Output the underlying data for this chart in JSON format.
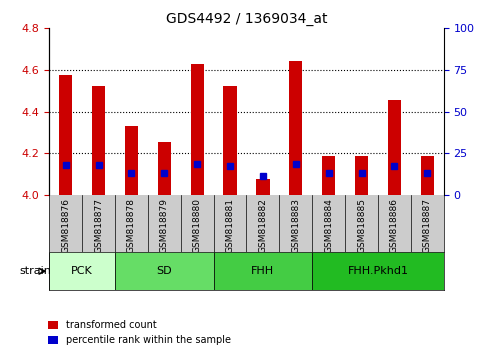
{
  "title": "GDS4492 / 1369034_at",
  "samples": [
    "GSM818876",
    "GSM818877",
    "GSM818878",
    "GSM818879",
    "GSM818880",
    "GSM818881",
    "GSM818882",
    "GSM818883",
    "GSM818884",
    "GSM818885",
    "GSM818886",
    "GSM818887"
  ],
  "transformed_count": [
    4.575,
    4.525,
    4.33,
    4.255,
    4.63,
    4.525,
    4.075,
    4.645,
    4.185,
    4.185,
    4.455,
    4.185
  ],
  "percentile_rank": [
    0.18,
    0.18,
    0.13,
    0.13,
    0.185,
    0.175,
    0.115,
    0.185,
    0.13,
    0.13,
    0.175,
    0.13
  ],
  "ylim_left": [
    4.0,
    4.8
  ],
  "ylim_right": [
    0,
    100
  ],
  "yticks_left": [
    4.0,
    4.2,
    4.4,
    4.6,
    4.8
  ],
  "yticks_right": [
    0,
    25,
    50,
    75,
    100
  ],
  "groups": [
    {
      "label": "PCK",
      "start": 0,
      "end": 2,
      "color": "#ccffcc"
    },
    {
      "label": "SD",
      "start": 2,
      "end": 5,
      "color": "#66dd66"
    },
    {
      "label": "FHH",
      "start": 5,
      "end": 8,
      "color": "#44cc44"
    },
    {
      "label": "FHH.Pkhd1",
      "start": 8,
      "end": 11,
      "color": "#22bb22"
    }
  ],
  "bar_color_red": "#cc0000",
  "bar_color_blue": "#0000cc",
  "bar_width": 0.4,
  "grid_color": "#000000",
  "bg_color_plot": "#ffffff",
  "bg_color_xlabels": "#cccccc",
  "left_axis_color": "#cc0000",
  "right_axis_color": "#0000cc",
  "strain_label": "strain",
  "legend_red": "transformed count",
  "legend_blue": "percentile rank within the sample",
  "base_count": 4.0,
  "base_percentile": 0.0,
  "percentile_scale": 0.8,
  "groups_pck": [
    0,
    1
  ],
  "groups_sd": [
    2,
    3,
    4
  ],
  "groups_fhh": [
    5,
    6,
    7
  ],
  "groups_fhhpkhd1": [
    8,
    9,
    10,
    11
  ]
}
